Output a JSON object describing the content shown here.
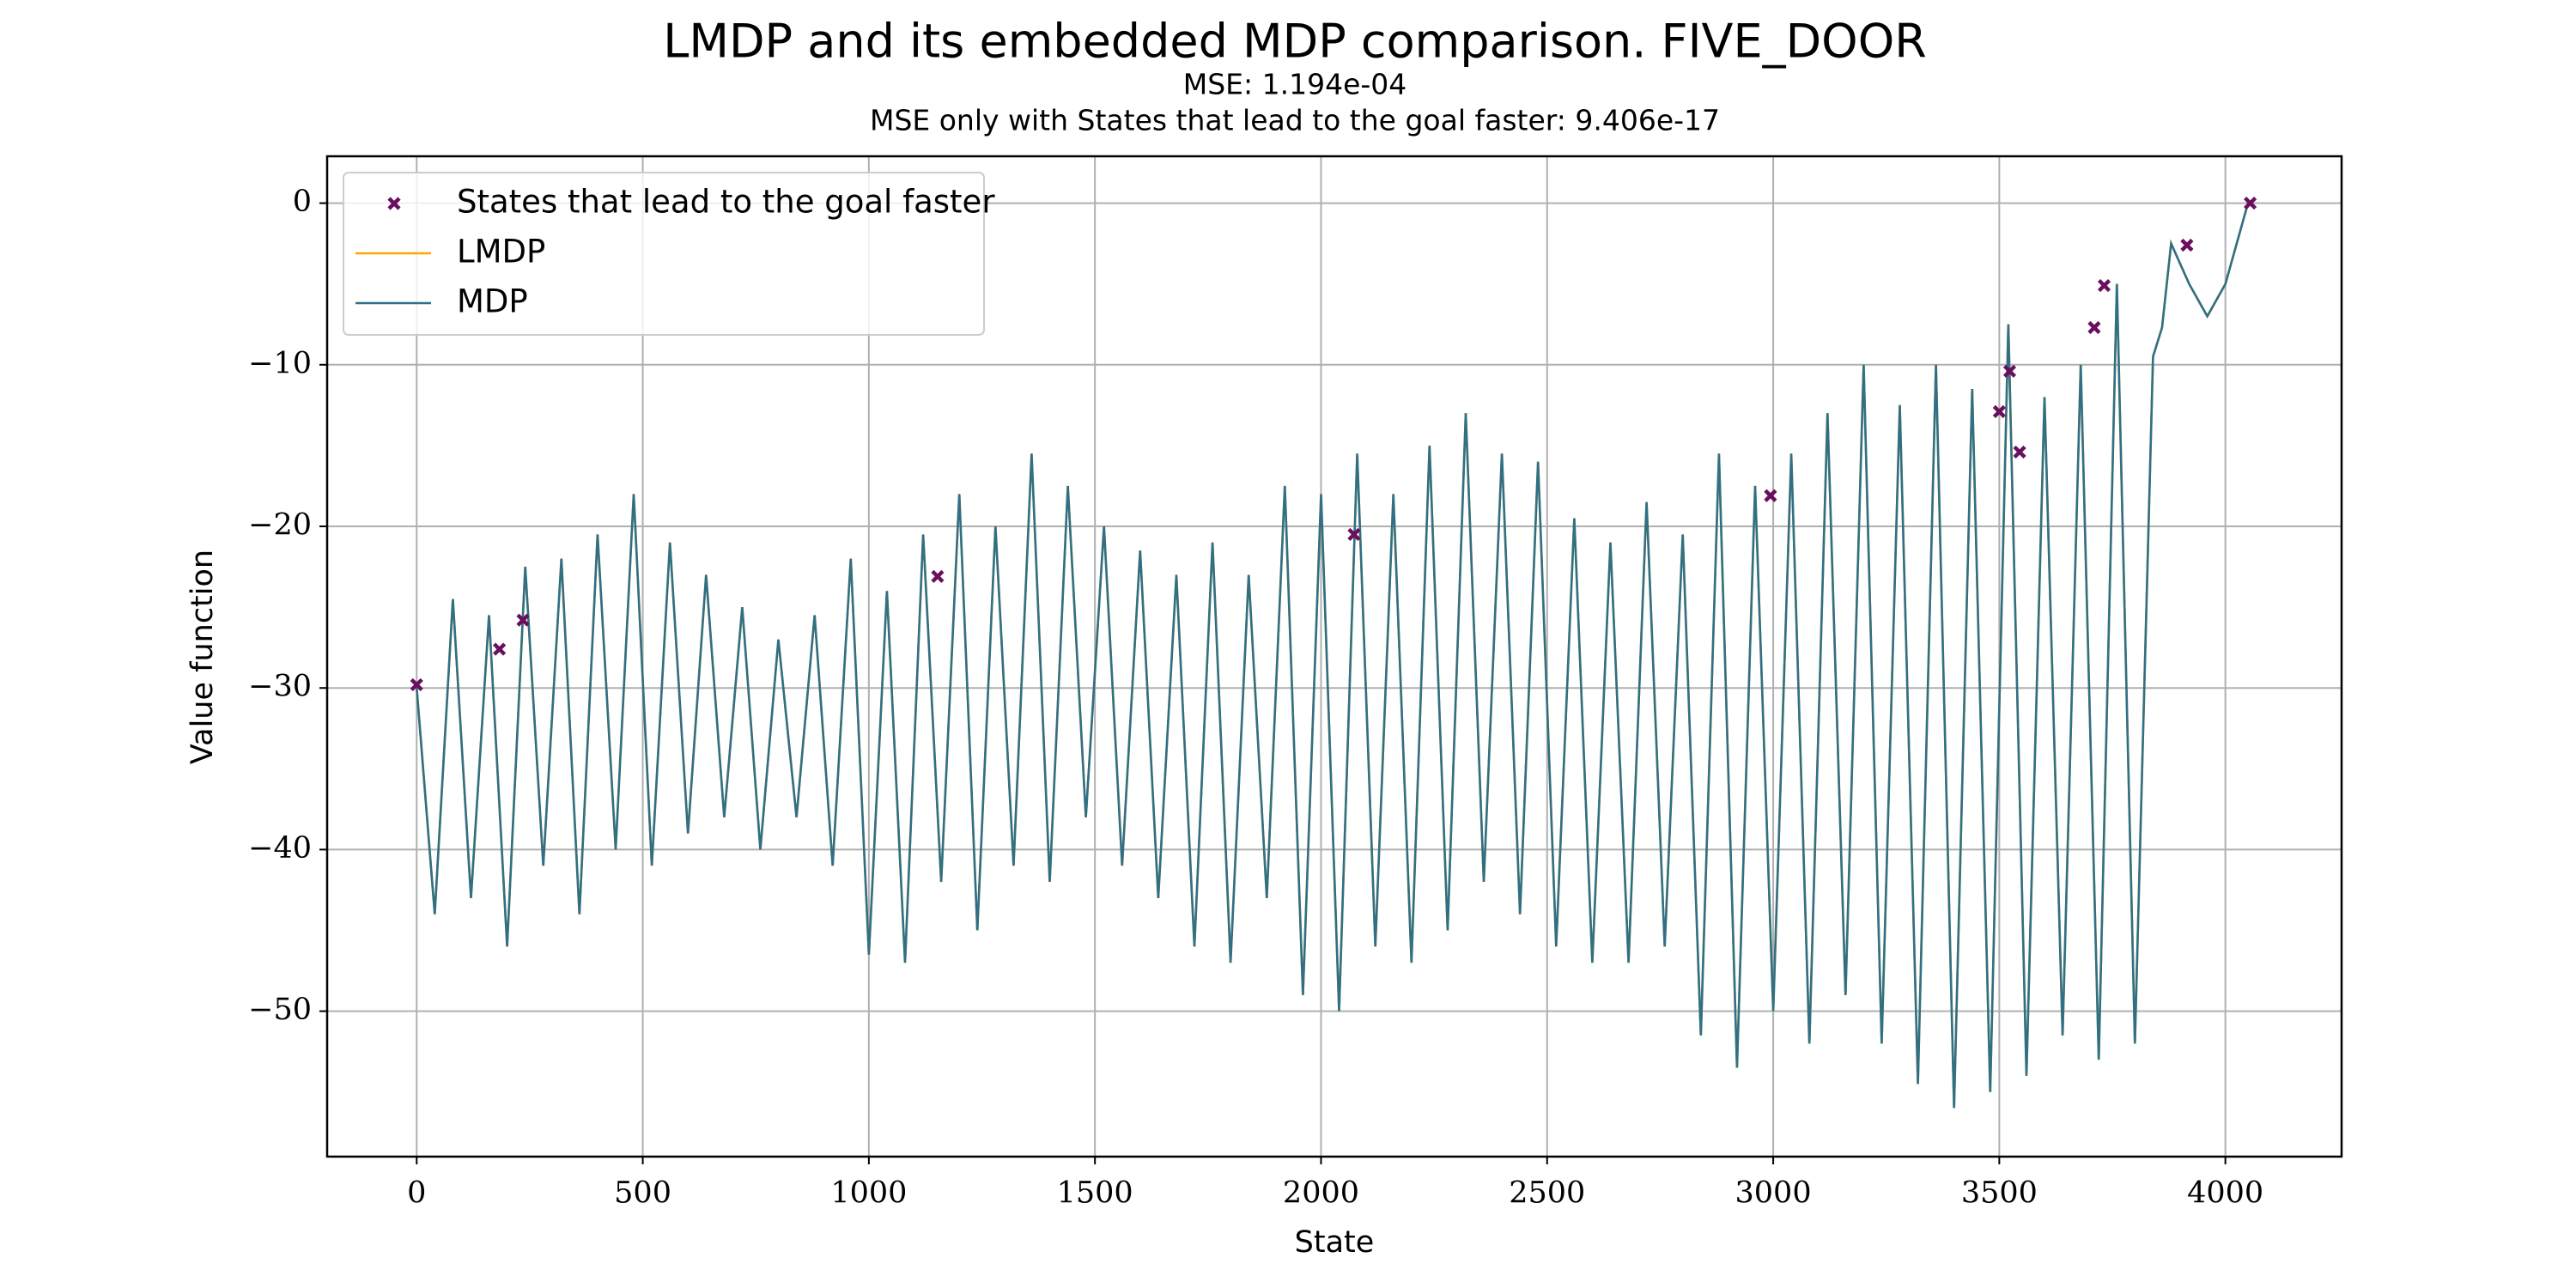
{
  "chart_data": {
    "type": "line",
    "title": "LMDP and its embedded MDP comparison. FIVE_DOOR",
    "subtitle": "MSE: 1.194e-04",
    "subtitle2": "MSE only with States that lead to the goal faster: 9.406e-17",
    "x_label": "State",
    "y_label": "Value function",
    "xlim": [
      -198,
      4257
    ],
    "ylim": [
      -59.0,
      2.9
    ],
    "xticks": [
      0,
      500,
      1000,
      1500,
      2000,
      2500,
      3000,
      3500,
      4000
    ],
    "yticks": [
      {
        "value": -50,
        "label": "−50"
      },
      {
        "value": -40,
        "label": "−40"
      },
      {
        "value": -30,
        "label": "−30"
      },
      {
        "value": -20,
        "label": "−20"
      },
      {
        "value": -10,
        "label": "−10"
      },
      0
    ],
    "grid": true,
    "legend": "upper left",
    "x": [
      0,
      40,
      80,
      120,
      160,
      200,
      240,
      280,
      320,
      360,
      400,
      440,
      480,
      520,
      560,
      600,
      640,
      680,
      720,
      760,
      800,
      840,
      880,
      920,
      960,
      1000,
      1040,
      1080,
      1120,
      1160,
      1200,
      1240,
      1280,
      1320,
      1360,
      1400,
      1440,
      1480,
      1520,
      1560,
      1600,
      1640,
      1680,
      1720,
      1760,
      1800,
      1840,
      1880,
      1920,
      1960,
      2000,
      2040,
      2080,
      2120,
      2160,
      2200,
      2240,
      2280,
      2320,
      2360,
      2400,
      2440,
      2480,
      2520,
      2560,
      2600,
      2640,
      2680,
      2720,
      2760,
      2800,
      2840,
      2880,
      2920,
      2960,
      3000,
      3040,
      3080,
      3120,
      3160,
      3200,
      3240,
      3280,
      3320,
      3360,
      3400,
      3440,
      3480,
      3520,
      3560,
      3600,
      3640,
      3680,
      3720,
      3760,
      3800,
      3840,
      3860,
      3880,
      3920,
      3960,
      4000,
      4050
    ],
    "series": [
      {
        "name": "LMDP",
        "color": "#ffa500",
        "values": [
          -30,
          -44,
          -24.5,
          -43,
          -25.5,
          -46,
          -22.5,
          -41,
          -22,
          -44,
          -20.5,
          -40,
          -18,
          -41,
          -21,
          -39,
          -23,
          -38,
          -25,
          -40,
          -27,
          -38,
          -25.5,
          -41,
          -22,
          -46.5,
          -24,
          -47,
          -20.5,
          -42,
          -18,
          -45,
          -20,
          -41,
          -15.5,
          -42,
          -17.5,
          -38,
          -20,
          -41,
          -21.5,
          -43,
          -23,
          -46,
          -21,
          -47,
          -23,
          -43,
          -17.5,
          -49,
          -18,
          -50,
          -15.5,
          -46,
          -18,
          -47,
          -15,
          -45,
          -13,
          -42,
          -15.5,
          -44,
          -16,
          -46,
          -19.5,
          -47,
          -21,
          -47,
          -18.5,
          -46,
          -20.5,
          -51.5,
          -15.5,
          -53.5,
          -17.5,
          -50,
          -15.5,
          -52,
          -13,
          -49,
          -10,
          -52,
          -12.5,
          -54.5,
          -10,
          -56,
          -11.5,
          -55,
          -7.5,
          -54,
          -12,
          -51.5,
          -10,
          -53,
          -5,
          -52,
          -9.5,
          -7.7,
          -2.5,
          -5,
          -7,
          -5,
          0
        ]
      },
      {
        "name": "MDP",
        "color": "#2f7087",
        "values": [
          -30,
          -44,
          -24.5,
          -43,
          -25.5,
          -46,
          -22.5,
          -41,
          -22,
          -44,
          -20.5,
          -40,
          -18,
          -41,
          -21,
          -39,
          -23,
          -38,
          -25,
          -40,
          -27,
          -38,
          -25.5,
          -41,
          -22,
          -46.5,
          -24,
          -47,
          -20.5,
          -42,
          -18,
          -45,
          -20,
          -41,
          -15.5,
          -42,
          -17.5,
          -38,
          -20,
          -41,
          -21.5,
          -43,
          -23,
          -46,
          -21,
          -47,
          -23,
          -43,
          -17.5,
          -49,
          -18,
          -50,
          -15.5,
          -46,
          -18,
          -47,
          -15,
          -45,
          -13,
          -42,
          -15.5,
          -44,
          -16,
          -46,
          -19.5,
          -47,
          -21,
          -47,
          -18.5,
          -46,
          -20.5,
          -51.5,
          -15.5,
          -53.5,
          -17.5,
          -50,
          -15.5,
          -52,
          -13,
          -49,
          -10,
          -52,
          -12.5,
          -54.5,
          -10,
          -56,
          -11.5,
          -55,
          -7.5,
          -54,
          -12,
          -51.5,
          -10,
          -53,
          -5,
          -52,
          -9.5,
          -7.7,
          -2.5,
          -5,
          -7,
          -5,
          0
        ]
      }
    ],
    "markers": {
      "name": "States that lead to the goal faster",
      "color": "#6a0f5e",
      "x": [
        0,
        183,
        235,
        1152,
        2073,
        2994,
        3500,
        3523,
        3545,
        3710,
        3732,
        3915,
        4055
      ],
      "values": [
        -29.8,
        -27.6,
        -25.8,
        -23.1,
        -20.5,
        -18.1,
        -12.9,
        -10.4,
        -15.4,
        -7.7,
        -5.1,
        -2.6,
        0
      ]
    }
  }
}
